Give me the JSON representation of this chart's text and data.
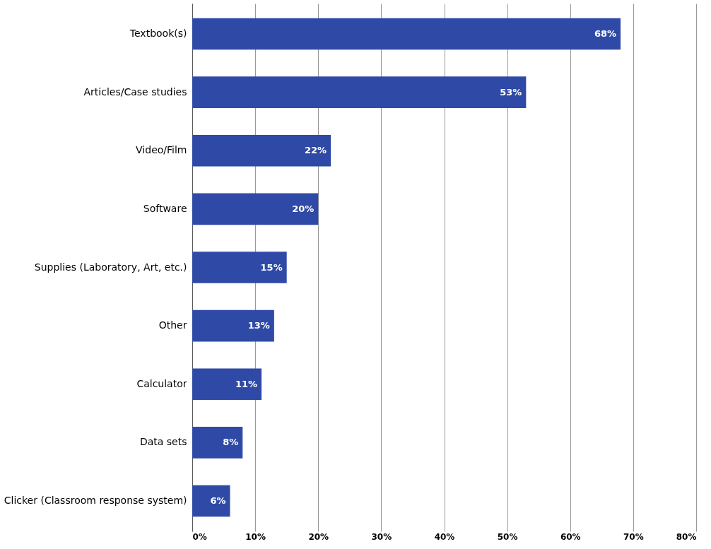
{
  "chart_data": {
    "type": "bar",
    "orientation": "horizontal",
    "categories": [
      "Textbook(s)",
      "Articles/Case studies",
      "Video/Film",
      "Software",
      "Supplies (Laboratory, Art, etc.)",
      "Other",
      "Calculator",
      "Data sets",
      "Clicker (Classroom response system)"
    ],
    "values": [
      68,
      53,
      22,
      20,
      15,
      13,
      11,
      8,
      6
    ],
    "value_labels": [
      "68%",
      "53%",
      "22%",
      "20%",
      "15%",
      "13%",
      "11%",
      "8%",
      "6%"
    ],
    "color": "#2f4aa6",
    "xlim": [
      0,
      80
    ],
    "xticks": [
      {
        "value": 0,
        "label": "0%"
      },
      {
        "value": 10,
        "label": "10%"
      },
      {
        "value": 20,
        "label": "20%"
      },
      {
        "value": 30,
        "label": "30%"
      },
      {
        "value": 40,
        "label": "40%"
      },
      {
        "value": 50,
        "label": "50%"
      },
      {
        "value": 60,
        "label": "60%"
      },
      {
        "value": 70,
        "label": "70%"
      },
      {
        "value": 80,
        "label": "80%"
      }
    ],
    "grid": "x"
  }
}
